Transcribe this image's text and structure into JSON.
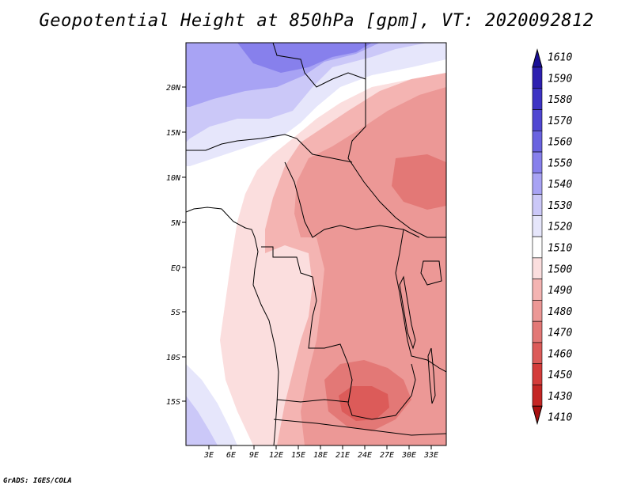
{
  "title": "Geopotential Height at 850hPa [gpm], VT: 2020092812",
  "credit": "GrADS: IGES/COLA",
  "map": {
    "lat_labels": [
      "20N",
      "15N",
      "10N",
      "5N",
      "EQ",
      "5S",
      "10S",
      "15S"
    ],
    "lon_labels": [
      "3E",
      "6E",
      "9E",
      "12E",
      "15E",
      "18E",
      "21E",
      "24E",
      "27E",
      "30E",
      "33E"
    ],
    "lat_range": [
      -20,
      25
    ],
    "lon_range": [
      0,
      35
    ]
  },
  "colorbar": {
    "levels": [
      "1610",
      "1590",
      "1580",
      "1570",
      "1560",
      "1550",
      "1540",
      "1530",
      "1520",
      "1510",
      "1500",
      "1490",
      "1480",
      "1470",
      "1460",
      "1450",
      "1430",
      "1410"
    ],
    "colors": [
      "#1a0f96",
      "#2d1fb0",
      "#3d33c4",
      "#5047d2",
      "#6a63e0",
      "#8780ec",
      "#a8a3f4",
      "#cbc8f8",
      "#e6e6fb",
      "#ffffff",
      "#fbdede",
      "#f4b4b2",
      "#ec9896",
      "#e37876",
      "#dc5b59",
      "#d43c3a",
      "#c42624",
      "#a81010"
    ]
  }
}
